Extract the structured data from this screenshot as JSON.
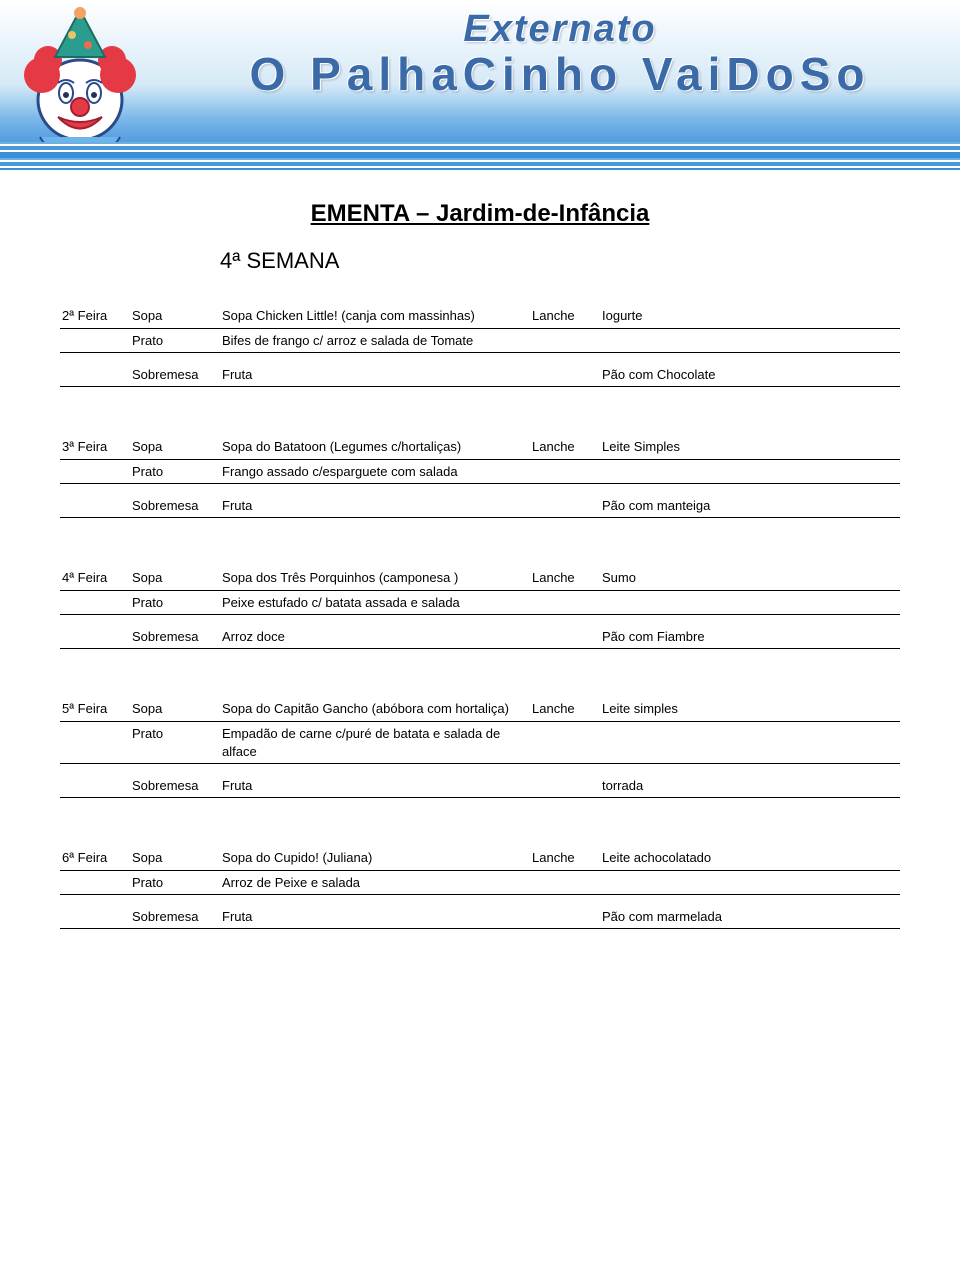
{
  "header": {
    "line1": "Externato",
    "line2": "O PalhaCinho VaiDoSo"
  },
  "title": "EMENTA – Jardim-de-Infância",
  "week": "4ª SEMANA",
  "labels": {
    "sopa": "Sopa",
    "prato": "Prato",
    "sobremesa": "Sobremesa",
    "lanche": "Lanche"
  },
  "days": [
    {
      "day": "2ª Feira",
      "sopa": "Sopa Chicken Little! (canja com massinhas)",
      "prato": "Bifes de frango  c/ arroz  e salada de Tomate",
      "sobremesa": "Fruta",
      "lanche_top": "Iogurte",
      "lanche_bottom": "Pão com Chocolate"
    },
    {
      "day": "3ª Feira",
      "sopa": "Sopa do Batatoon (Legumes c/hortaliças)",
      "prato": " Frango assado c/esparguete com salada",
      "sobremesa": "Fruta",
      "lanche_top": "Leite Simples",
      "lanche_bottom": "Pão com manteiga"
    },
    {
      "day": "4ª Feira",
      "sopa": "Sopa dos Três Porquinhos (camponesa )",
      "prato": "Peixe estufado c/ batata assada e salada",
      "sobremesa": "Arroz doce",
      "lanche_top": "Sumo",
      "lanche_bottom": " Pão com Fiambre"
    },
    {
      "day": "5ª Feira",
      "sopa": "Sopa do Capitão Gancho (abóbora com hortaliça)",
      "prato": "Empadão de carne c/puré de batata e salada de alface",
      "sobremesa": "Fruta",
      "lanche_top": "Leite simples",
      "lanche_bottom": " torrada"
    },
    {
      "day": "6ª Feira",
      "sopa": "Sopa do Cupido! (Juliana)",
      "prato": "Arroz de Peixe e salada",
      "sobremesa": "Fruta",
      "lanche_top": "Leite achocolatado",
      "lanche_bottom": "Pão com marmelada"
    }
  ],
  "colors": {
    "header_gradient_top": "#ffffff",
    "header_gradient_bottom": "#3a8dd8",
    "header_text": "#3a6aa8",
    "border": "#000000"
  }
}
